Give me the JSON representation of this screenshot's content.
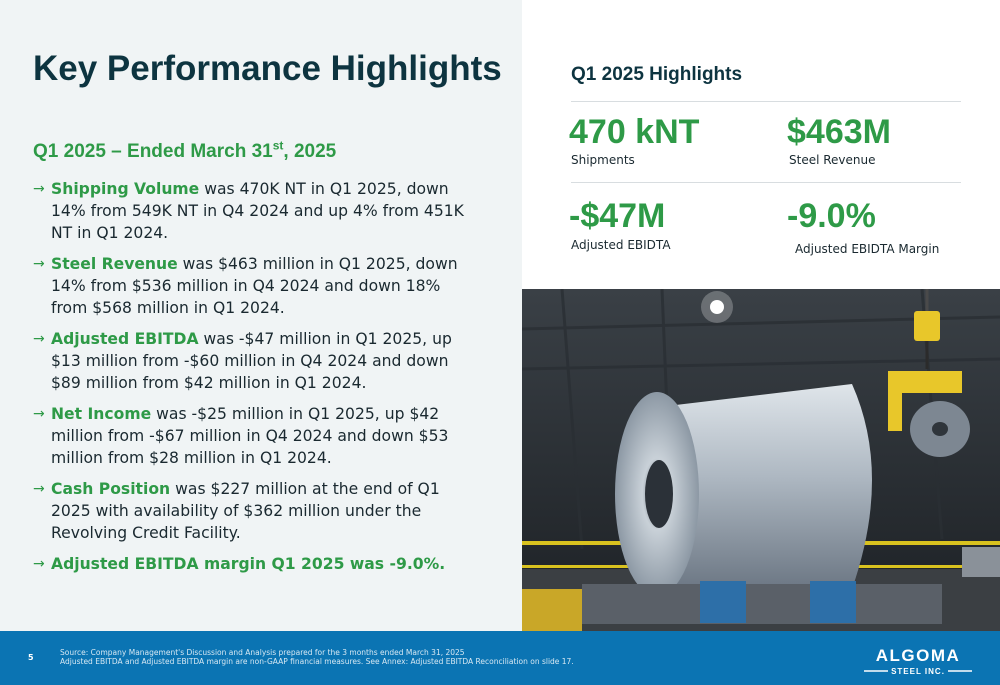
{
  "slide": {
    "title": "Key Performance Highlights",
    "subtitle_prefix": "Q1 2025 – Ended March 31",
    "subtitle_sup": "st",
    "subtitle_suffix": ", 2025"
  },
  "bullets": [
    {
      "highlight": "Shipping Volume",
      "text": " was 470K NT in Q1 2025, down 14% from 549K NT in Q4 2024 and up 4% from 451K NT in Q1 2024."
    },
    {
      "highlight": "Steel Revenue",
      "text": " was $463 million in Q1 2025, down 14% from $536 million in Q4 2024 and down 18% from $568 million in Q1 2024."
    },
    {
      "highlight": "Adjusted EBITDA",
      "text": " was -$47 million in Q1 2025, up $13 million from -$60 million in Q4 2024 and down $89 million from $42 million in Q1 2024."
    },
    {
      "highlight": "Net Income",
      "text": " was -$25 million in Q1 2025, up $42 million from -$67 million in Q4 2024 and down $53 million from $28 million in Q1 2024."
    },
    {
      "highlight": "Cash Position",
      "text": " was $227 million at the end of Q1 2025 with availability of $362 million under the Revolving Credit Facility."
    },
    {
      "highlight": "Adjusted EBITDA margin Q1 2025 was -9.0%.",
      "text": ""
    }
  ],
  "highlights": {
    "title": "Q1 2025 Highlights",
    "metrics": [
      {
        "value": "470 kNT",
        "label": "Shipments"
      },
      {
        "value": "$463M",
        "label": "Steel Revenue"
      },
      {
        "value": "-$47M",
        "label": "Adjusted EBIDTA"
      },
      {
        "value": "-9.0%",
        "label": "Adjusted EBIDTA Margin"
      }
    ]
  },
  "footer": {
    "page_number": "5",
    "source_line1": "Source: Company Management's Discussion and Analysis prepared for the 3 months ended March 31, 2025",
    "source_line2": "Adjusted EBITDA and Adjusted EBITDA margin are non-GAAP financial measures. See Annex: Adjusted EBITDA Reconciliation on slide 17.",
    "logo_main": "ALGOMA",
    "logo_sub": "STEEL INC."
  },
  "colors": {
    "accent_green": "#2e9a47",
    "title_navy": "#0d3440",
    "footer_blue": "#0b74b3",
    "left_panel_bg": "#f0f4f5"
  },
  "icons": {
    "bullet": "arrow-right-icon",
    "photo": "steel-coil-photo"
  }
}
